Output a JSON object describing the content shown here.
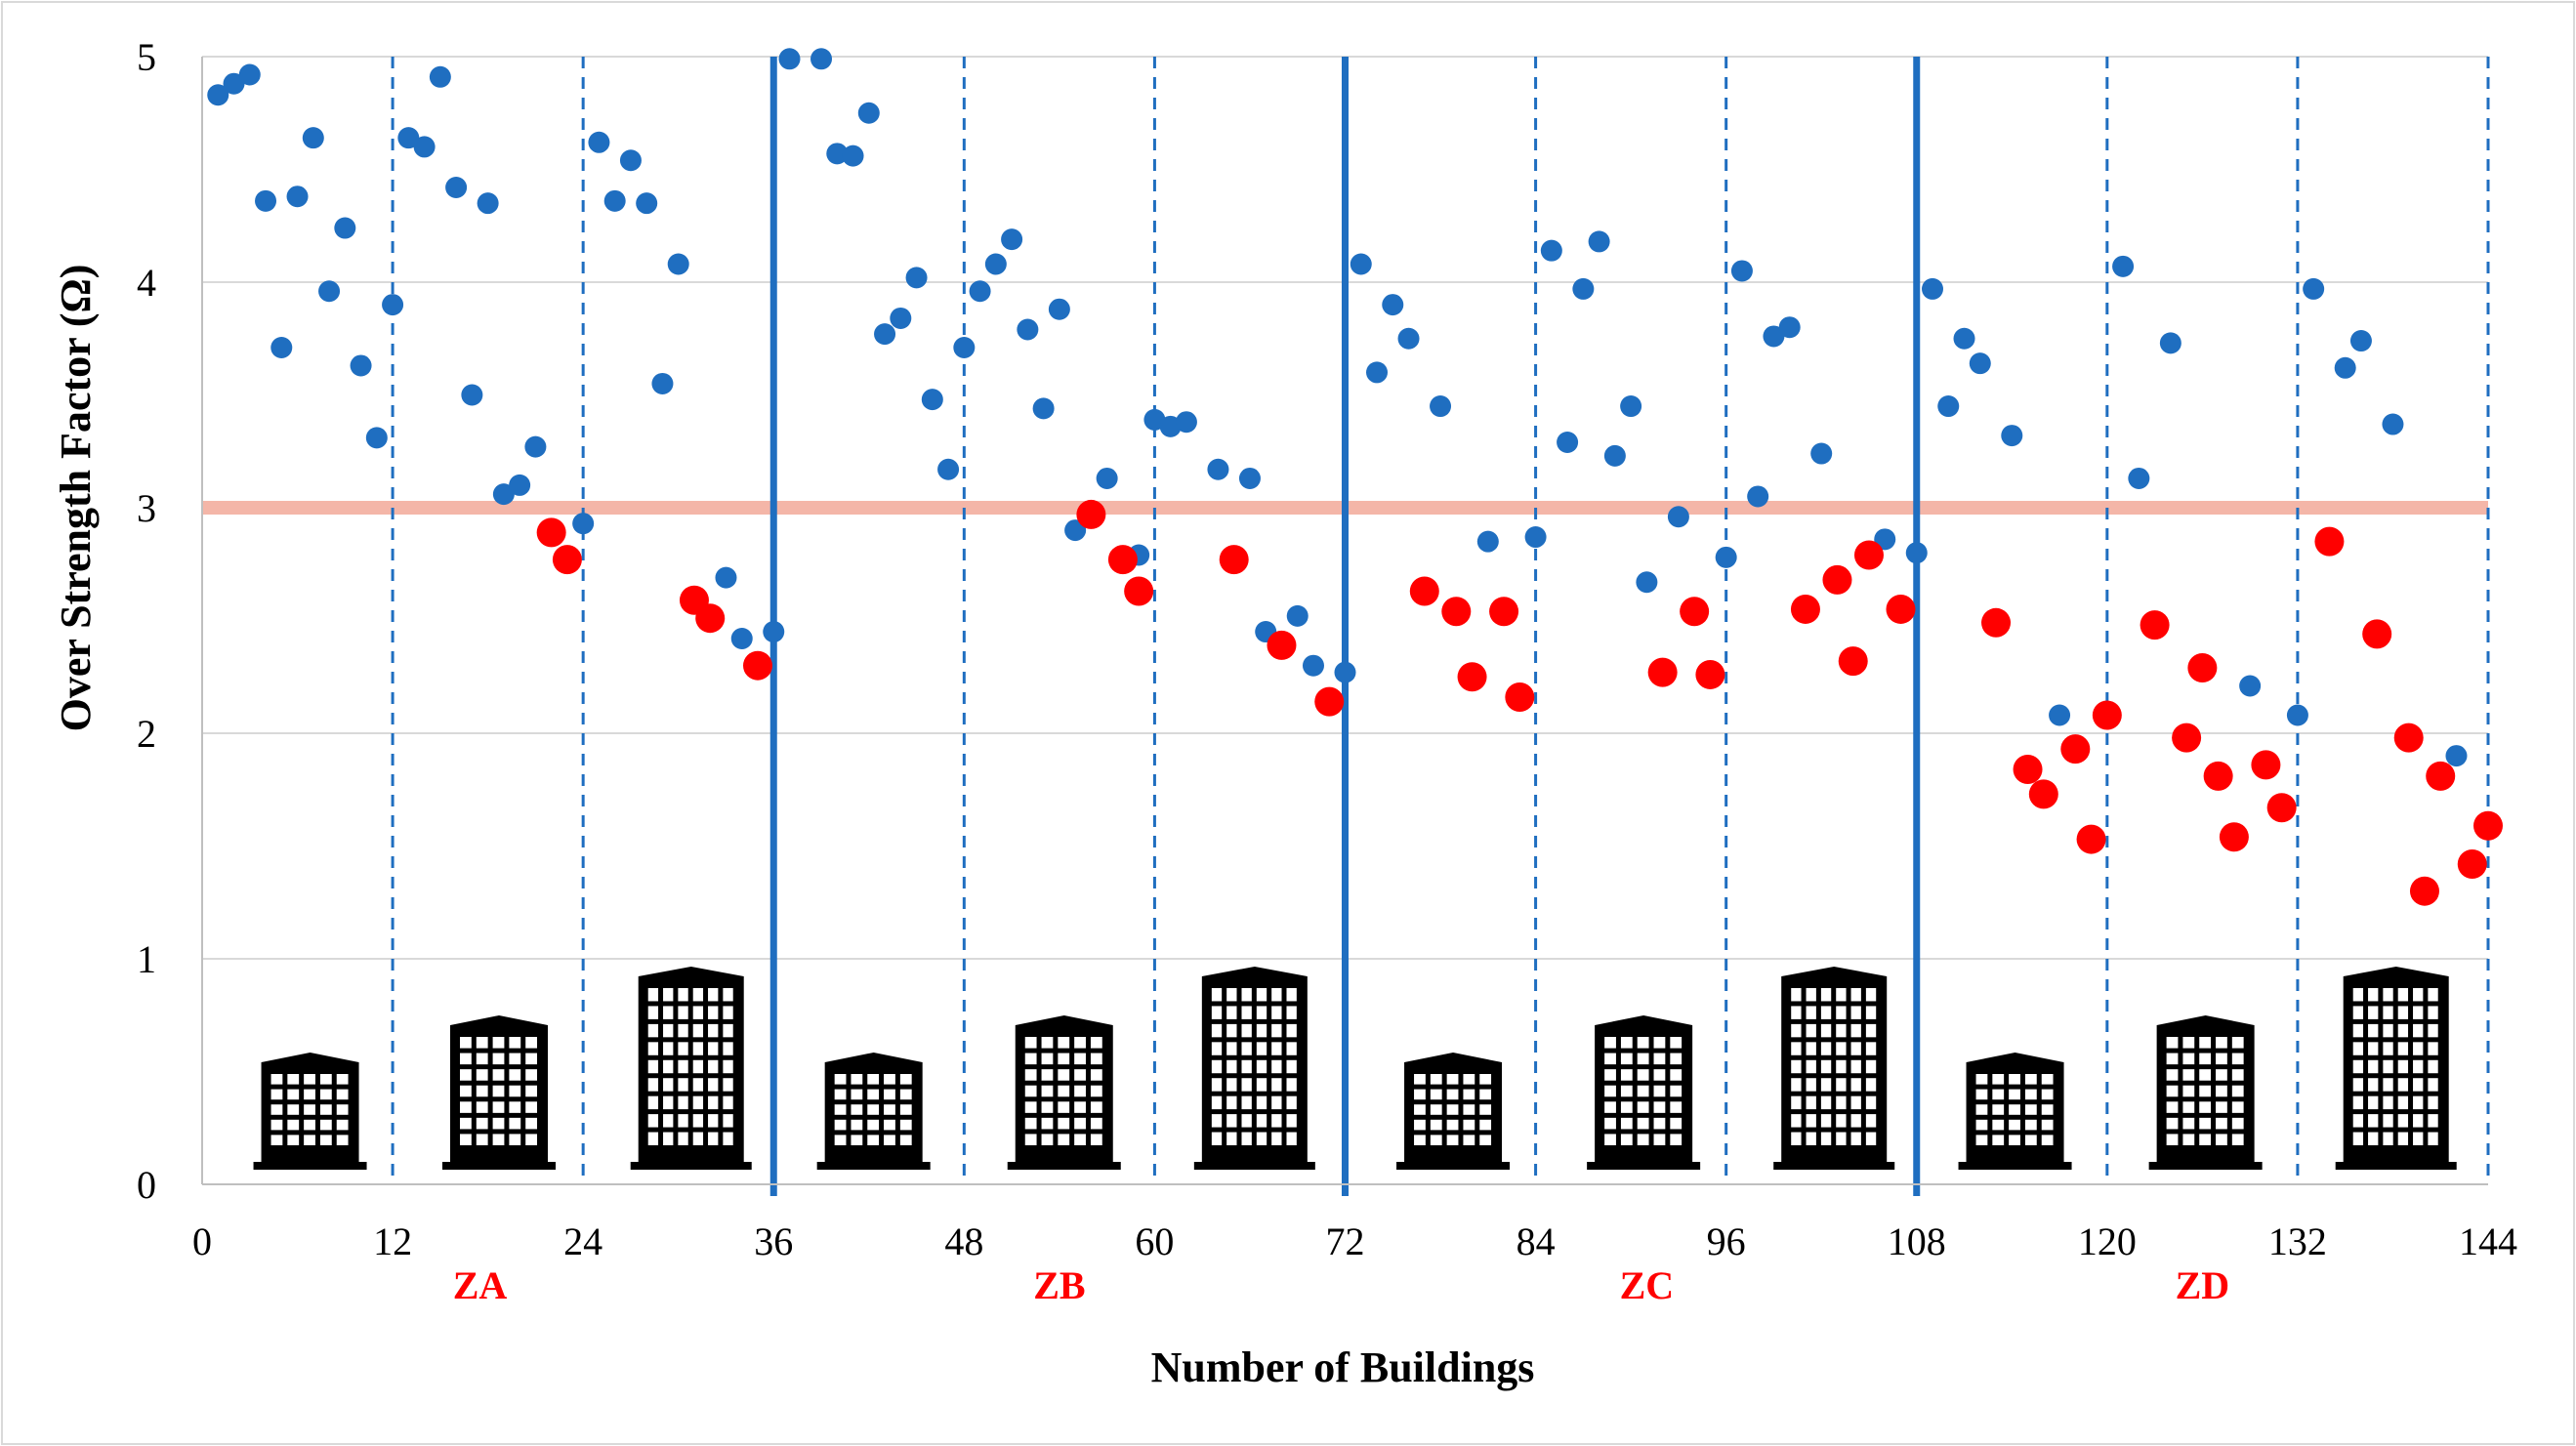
{
  "chart_data": {
    "type": "scatter",
    "title": "",
    "xlabel": "Number of Buildings",
    "ylabel": "Over Strength Factor (Ω)",
    "xlim": [
      0,
      144
    ],
    "ylim": [
      0,
      5
    ],
    "x_ticks": [
      "0",
      "12",
      "24",
      "36",
      "48",
      "60",
      "72",
      "84",
      "96",
      "108",
      "120",
      "132",
      "144"
    ],
    "y_ticks": [
      "0",
      "1",
      "2",
      "3",
      "4",
      "5"
    ],
    "grid": "horizontal",
    "legend": "none",
    "reference_line": {
      "y": 3,
      "color": "#F4B6A8"
    },
    "zone_dividers": [
      36,
      72,
      108
    ],
    "subgroup_dividers": [
      12,
      24,
      48,
      60,
      84,
      96,
      120,
      132,
      144
    ],
    "zones": [
      {
        "label": "ZA",
        "x": 17.5
      },
      {
        "label": "ZB",
        "x": 54
      },
      {
        "label": "ZC",
        "x": 91
      },
      {
        "label": "ZD",
        "x": 126
      }
    ],
    "building_icons": [
      {
        "name": "low-rise-building-icon",
        "x": 6.8,
        "size": "small"
      },
      {
        "name": "mid-rise-building-icon",
        "x": 18.7,
        "size": "medium"
      },
      {
        "name": "high-rise-building-icon",
        "x": 30.8,
        "size": "large"
      },
      {
        "name": "low-rise-building-icon",
        "x": 42.3,
        "size": "small"
      },
      {
        "name": "mid-rise-building-icon",
        "x": 54.3,
        "size": "medium"
      },
      {
        "name": "high-rise-building-icon",
        "x": 66.3,
        "size": "large"
      },
      {
        "name": "low-rise-building-icon",
        "x": 78.8,
        "size": "small"
      },
      {
        "name": "mid-rise-building-icon",
        "x": 90.8,
        "size": "medium"
      },
      {
        "name": "high-rise-building-icon",
        "x": 102.8,
        "size": "large"
      },
      {
        "name": "low-rise-building-icon",
        "x": 114.2,
        "size": "small"
      },
      {
        "name": "mid-rise-building-icon",
        "x": 126.2,
        "size": "medium"
      },
      {
        "name": "high-rise-building-icon",
        "x": 138.2,
        "size": "large"
      }
    ],
    "colors": {
      "above": "#1F6EC0",
      "below": "#FF0000",
      "divider": "#1F6EC0",
      "zone_label": "#FF0000"
    },
    "series": [
      {
        "color": "#1F6EC0",
        "points": [
          [
            1,
            4.83
          ],
          [
            2,
            4.88
          ],
          [
            3,
            4.92
          ],
          [
            4,
            4.36
          ],
          [
            5,
            3.71
          ],
          [
            6,
            4.38
          ],
          [
            7,
            4.64
          ],
          [
            8,
            3.96
          ],
          [
            9,
            4.24
          ],
          [
            10,
            3.63
          ],
          [
            11,
            3.31
          ],
          [
            12,
            3.9
          ],
          [
            13,
            4.64
          ],
          [
            14,
            4.6
          ],
          [
            15,
            4.91
          ],
          [
            16,
            4.42
          ],
          [
            17,
            3.5
          ],
          [
            18,
            4.35
          ],
          [
            19,
            3.06
          ],
          [
            20,
            3.1
          ],
          [
            21,
            3.27
          ],
          [
            24,
            2.93
          ],
          [
            25,
            4.62
          ],
          [
            26,
            4.36
          ],
          [
            27,
            4.54
          ],
          [
            28,
            4.35
          ],
          [
            29,
            3.55
          ],
          [
            30,
            4.08
          ],
          [
            33,
            2.69
          ],
          [
            34,
            2.42
          ],
          [
            36,
            2.45
          ],
          [
            37,
            4.99
          ],
          [
            39,
            4.99
          ],
          [
            40,
            4.57
          ],
          [
            41,
            4.56
          ],
          [
            42,
            4.75
          ],
          [
            43,
            3.77
          ],
          [
            44,
            3.84
          ],
          [
            45,
            4.02
          ],
          [
            46,
            3.48
          ],
          [
            47,
            3.17
          ],
          [
            48,
            3.71
          ],
          [
            49,
            3.96
          ],
          [
            50,
            4.08
          ],
          [
            51,
            4.19
          ],
          [
            52,
            3.79
          ],
          [
            53,
            3.44
          ],
          [
            54,
            3.88
          ],
          [
            55,
            2.9
          ],
          [
            57,
            3.13
          ],
          [
            59,
            2.79
          ],
          [
            60,
            3.39
          ],
          [
            61,
            3.36
          ],
          [
            62,
            3.38
          ],
          [
            64,
            3.17
          ],
          [
            66,
            3.13
          ],
          [
            67,
            2.45
          ],
          [
            69,
            2.52
          ],
          [
            70,
            2.3
          ],
          [
            72,
            2.27
          ],
          [
            73,
            4.08
          ],
          [
            74,
            3.6
          ],
          [
            75,
            3.9
          ],
          [
            76,
            3.75
          ],
          [
            78,
            3.45
          ],
          [
            81,
            2.85
          ],
          [
            84,
            2.87
          ],
          [
            85,
            4.14
          ],
          [
            86,
            3.29
          ],
          [
            87,
            3.97
          ],
          [
            88,
            4.18
          ],
          [
            89,
            3.23
          ],
          [
            90,
            3.45
          ],
          [
            91,
            2.67
          ],
          [
            93,
            2.96
          ],
          [
            96,
            2.78
          ],
          [
            97,
            4.05
          ],
          [
            98,
            3.05
          ],
          [
            99,
            3.76
          ],
          [
            100,
            3.8
          ],
          [
            102,
            3.24
          ],
          [
            106,
            2.86
          ],
          [
            108,
            2.8
          ],
          [
            109,
            3.97
          ],
          [
            110,
            3.45
          ],
          [
            111,
            3.75
          ],
          [
            112,
            3.64
          ],
          [
            114,
            3.32
          ],
          [
            117,
            2.08
          ],
          [
            121,
            4.07
          ],
          [
            122,
            3.13
          ],
          [
            124,
            3.73
          ],
          [
            129,
            2.21
          ],
          [
            132,
            2.08
          ],
          [
            133,
            3.97
          ],
          [
            135,
            3.62
          ],
          [
            136,
            3.74
          ],
          [
            138,
            3.37
          ],
          [
            142,
            1.9
          ]
        ]
      },
      {
        "color": "#FF0000",
        "points": [
          [
            22,
            2.89
          ],
          [
            23,
            2.77
          ],
          [
            31,
            2.59
          ],
          [
            32,
            2.51
          ],
          [
            35,
            2.3
          ],
          [
            56,
            2.97
          ],
          [
            58,
            2.77
          ],
          [
            59,
            2.63
          ],
          [
            65,
            2.77
          ],
          [
            68,
            2.39
          ],
          [
            71,
            2.14
          ],
          [
            77,
            2.63
          ],
          [
            79,
            2.54
          ],
          [
            80,
            2.25
          ],
          [
            82,
            2.54
          ],
          [
            83,
            2.16
          ],
          [
            92,
            2.27
          ],
          [
            94,
            2.54
          ],
          [
            95,
            2.26
          ],
          [
            101,
            2.55
          ],
          [
            103,
            2.68
          ],
          [
            104,
            2.32
          ],
          [
            105,
            2.79
          ],
          [
            107,
            2.55
          ],
          [
            113,
            2.49
          ],
          [
            115,
            1.84
          ],
          [
            116,
            1.73
          ],
          [
            118,
            1.93
          ],
          [
            119,
            1.53
          ],
          [
            120,
            2.08
          ],
          [
            123,
            2.48
          ],
          [
            125,
            1.98
          ],
          [
            126,
            2.29
          ],
          [
            127,
            1.81
          ],
          [
            128,
            1.54
          ],
          [
            130,
            1.86
          ],
          [
            131,
            1.67
          ],
          [
            134,
            2.85
          ],
          [
            137,
            2.44
          ],
          [
            139,
            1.98
          ],
          [
            140,
            1.3
          ],
          [
            141,
            1.81
          ],
          [
            143,
            1.42
          ],
          [
            144,
            1.59
          ]
        ]
      }
    ]
  }
}
